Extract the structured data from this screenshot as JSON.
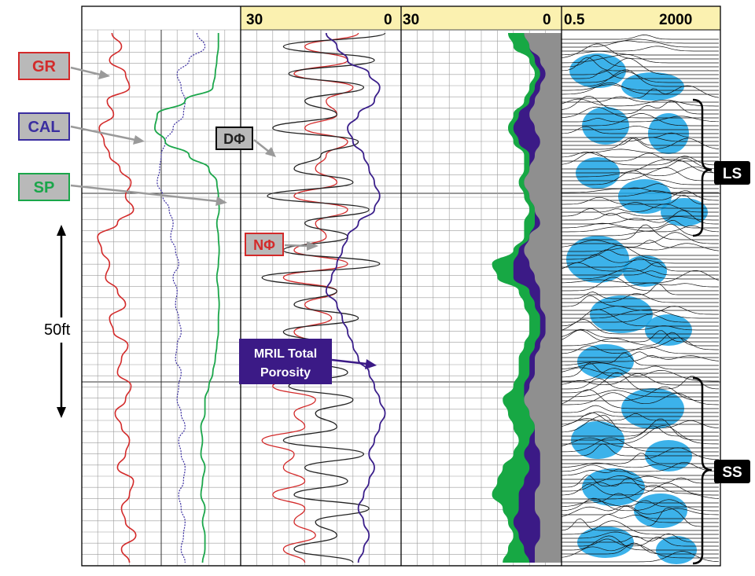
{
  "header": {
    "scale_labels": [
      {
        "id": "t2-left",
        "text": "30"
      },
      {
        "id": "t2-right",
        "text": "0"
      },
      {
        "id": "t3-left",
        "text": "30"
      },
      {
        "id": "t3-right",
        "text": "0"
      },
      {
        "id": "t4-left",
        "text": "0.5"
      },
      {
        "id": "t4-right",
        "text": "2000"
      }
    ],
    "band_color": "#fbf1b0"
  },
  "callouts": {
    "gr": "GR",
    "cal": "CAL",
    "sp": "SP",
    "dphi": "DΦ",
    "nphi": "NΦ",
    "mril_line1": "MRIL Total",
    "mril_line2": "Porosity",
    "depth_scale": "50ft",
    "ls": "LS",
    "ss": "SS"
  },
  "colors": {
    "gr": "#d32a2a",
    "cal": "#3a2ea0",
    "sp": "#1aa64a",
    "dphi": "#222222",
    "nphi": "#d32a2a",
    "mril": "#3a1e8a",
    "fill_gray": "#8f8f8f",
    "fill_purple": "#3b1a86",
    "fill_green": "#17a844",
    "t2_blue": "#1aa5e6",
    "box_gray": "#b9b9b9",
    "box_mril": "#3b1a86",
    "box_black": "#000000",
    "arrow_gray": "#9a9a9a"
  },
  "chart_data": {
    "type": "line",
    "depth_samples": 40,
    "tracks": [
      {
        "track": 1,
        "series": [
          {
            "name": "GR",
            "values": [
              0.38,
              0.5,
              0.35,
              0.55,
              0.6,
              0.32,
              0.4,
              0.22,
              0.28,
              0.35,
              0.48,
              0.62,
              0.55,
              0.65,
              0.45,
              0.2,
              0.25,
              0.35,
              0.3,
              0.45,
              0.55,
              0.35,
              0.4,
              0.58,
              0.5,
              0.45,
              0.62,
              0.55,
              0.42,
              0.5,
              0.6,
              0.55,
              0.45,
              0.65,
              0.6,
              0.5,
              0.55,
              0.68,
              0.5,
              0.6
            ]
          },
          {
            "name": "CAL",
            "values": [
              1.45,
              1.55,
              1.35,
              1.2,
              1.25,
              1.3,
              1.28,
              1.15,
              1.05,
              1.0,
              0.98,
              0.95,
              1.02,
              1.1,
              1.15,
              1.12,
              1.18,
              1.22,
              1.15,
              1.2,
              1.18,
              1.22,
              1.25,
              1.2,
              1.18,
              1.25,
              1.22,
              1.2,
              1.25,
              1.3,
              1.22,
              1.25,
              1.3,
              1.28,
              1.22,
              1.25,
              1.3,
              1.28,
              1.25,
              1.3
            ]
          },
          {
            "name": "SP",
            "values": [
              1.72,
              1.72,
              1.7,
              1.68,
              1.65,
              1.3,
              0.95,
              0.92,
              1.05,
              1.35,
              1.6,
              1.7,
              1.72,
              1.73,
              1.7,
              1.72,
              1.73,
              1.72,
              1.7,
              1.72,
              1.73,
              1.72,
              1.72,
              1.7,
              1.68,
              1.65,
              1.6,
              1.55,
              1.55,
              1.5,
              1.52,
              1.5,
              1.55,
              1.52,
              1.5,
              1.55,
              1.52,
              1.55,
              1.55,
              1.52
            ]
          }
        ]
      },
      {
        "track": 2,
        "series": [
          {
            "name": "DΦ",
            "values": [
              3,
              22,
              5,
              21,
              7,
              18,
              12,
              24,
              8,
              15,
              20,
              9,
              25,
              6,
              18,
              10,
              22,
              4,
              26,
              12,
              20,
              8,
              22,
              14,
              18,
              10,
              21,
              9,
              16,
              12,
              22,
              7,
              18,
              10,
              20,
              6,
              16,
              12,
              20,
              9
            ]
          },
          {
            "name": "NΦ",
            "values": [
              8,
              18,
              10,
              20,
              9,
              14,
              12,
              18,
              10,
              14,
              16,
              12,
              20,
              10,
              16,
              14,
              20,
              10,
              22,
              12,
              18,
              13,
              20,
              16,
              22,
              15,
              24,
              16,
              20,
              18,
              26,
              20,
              22,
              18,
              24,
              18,
              20,
              16,
              22,
              18
            ]
          },
          {
            "name": "MRIL Total Porosity",
            "values": [
              14,
              12,
              10,
              6,
              4,
              5,
              8,
              10,
              9,
              7,
              6,
              5,
              4,
              5,
              8,
              10,
              11,
              12,
              13,
              14,
              12,
              11,
              10,
              9,
              8,
              6,
              5,
              4,
              3,
              4,
              5,
              6,
              5,
              6,
              7,
              8,
              7,
              6,
              7,
              8
            ]
          }
        ]
      },
      {
        "track": 3,
        "series": [
          {
            "name": "gray",
            "values": [
              7,
              6,
              4,
              3,
              4,
              5,
              6,
              5,
              4,
              5,
              6,
              7,
              6,
              5,
              4,
              6,
              7,
              6,
              5,
              4,
              4,
              3,
              3,
              4,
              5,
              5,
              6,
              7,
              6,
              5,
              5,
              4,
              4,
              4,
              5,
              5,
              4,
              4,
              5,
              5
            ]
          },
          {
            "name": "purple",
            "values": [
              7,
              6,
              5,
              4,
              5,
              6,
              8,
              9,
              8,
              6,
              6,
              7,
              6,
              5,
              5,
              6,
              8,
              9,
              9,
              6,
              5,
              4,
              4,
              5,
              6,
              6,
              7,
              7,
              6,
              5,
              6,
              7,
              6,
              7,
              8,
              8,
              9,
              8,
              7,
              6
            ]
          },
          {
            "name": "green",
            "values": [
              10,
              9,
              6,
              5,
              6,
              7,
              9,
              10,
              9,
              7,
              7,
              8,
              7,
              6,
              7,
              7,
              9,
              13,
              12,
              8,
              7,
              6,
              6,
              7,
              8,
              8,
              9,
              11,
              10,
              9,
              8,
              9,
              11,
              12,
              13,
              11,
              10,
              9,
              10,
              11
            ]
          }
        ]
      },
      {
        "track": 4,
        "scale": "log",
        "range": [
          0.5,
          2000
        ],
        "zones": [
          {
            "label": "LS",
            "depth_from": 0.2,
            "depth_to": 0.45
          },
          {
            "label": "SS",
            "depth_from": 0.72,
            "depth_to": 1.0
          }
        ]
      }
    ]
  }
}
